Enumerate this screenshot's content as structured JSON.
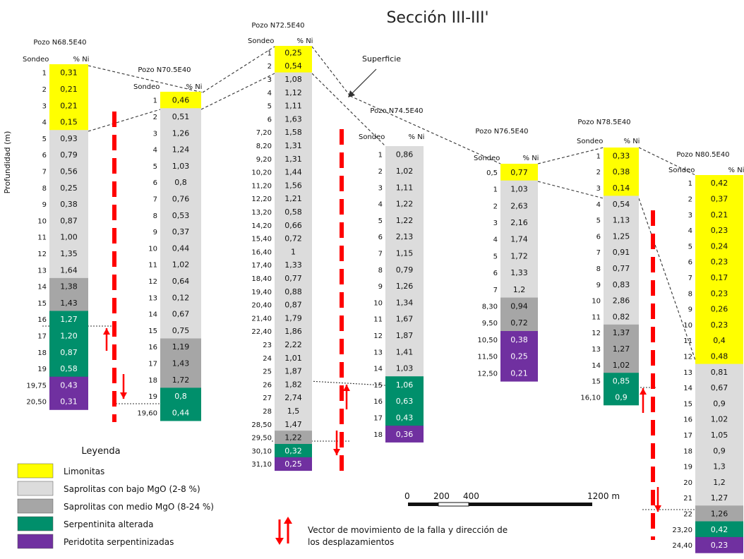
{
  "title": "Sección III-III'",
  "ylabel": "Profundidad (m)",
  "header_sondeo": "Sondeo",
  "header_ni": "% Ni",
  "surface_label": "Superficie",
  "legend_title": "Leyenda",
  "colors": {
    "L": "#ffff00",
    "S": "#dcdcdc",
    "M": "#a6a6a6",
    "G": "#008f6b",
    "P": "#7030a0",
    "arrow": "#ff0000"
  },
  "legend": [
    {
      "key": "L",
      "label": "Limonitas"
    },
    {
      "key": "S",
      "label": "Saprolitas con bajo MgO (2-8 %)"
    },
    {
      "key": "M",
      "label": "Saprolitas con medio MgO (8-24 %)"
    },
    {
      "key": "G",
      "label": "Serpentinita alterada"
    },
    {
      "key": "P",
      "label": "Peridotita serpentinizadas"
    }
  ],
  "arrow_legend": [
    "Vector de movimiento de la falla y dirección de",
    "los desplazamientos"
  ],
  "scale_labels": [
    "0",
    "200",
    "400",
    "1200 m"
  ],
  "wells": [
    {
      "name": "Pozo N68.5E40",
      "rows": [
        [
          "1",
          "0,31",
          "L"
        ],
        [
          "2",
          "0,21",
          "L"
        ],
        [
          "3",
          "0,21",
          "L"
        ],
        [
          "4",
          "0,15",
          "L"
        ],
        [
          "5",
          "0,93",
          "S"
        ],
        [
          "6",
          "0,79",
          "S"
        ],
        [
          "7",
          "0,56",
          "S"
        ],
        [
          "8",
          "0,25",
          "S"
        ],
        [
          "9",
          "0,38",
          "S"
        ],
        [
          "10",
          "0,87",
          "S"
        ],
        [
          "11",
          "1,00",
          "S"
        ],
        [
          "12",
          "1,35",
          "S"
        ],
        [
          "13",
          "1,64",
          "S"
        ],
        [
          "14",
          "1,38",
          "M"
        ],
        [
          "15",
          "1,43",
          "M"
        ],
        [
          "16",
          "1,27",
          "G"
        ],
        [
          "17",
          "1,20",
          "G"
        ],
        [
          "18",
          "0,87",
          "G"
        ],
        [
          "19",
          "0,58",
          "G"
        ],
        [
          "19,75",
          "0,43",
          "P"
        ],
        [
          "20,50",
          "0,31",
          "P"
        ]
      ]
    },
    {
      "name": "Pozo N70.5E40",
      "rows": [
        [
          "1",
          "0,46",
          "L"
        ],
        [
          "2",
          "0,51",
          "S"
        ],
        [
          "3",
          "1,26",
          "S"
        ],
        [
          "4",
          "1,24",
          "S"
        ],
        [
          "5",
          "1,03",
          "S"
        ],
        [
          "6",
          "0,8",
          "S"
        ],
        [
          "7",
          "0,76",
          "S"
        ],
        [
          "8",
          "0,53",
          "S"
        ],
        [
          "9",
          "0,37",
          "S"
        ],
        [
          "10",
          "0,44",
          "S"
        ],
        [
          "11",
          "1,02",
          "S"
        ],
        [
          "12",
          "0,64",
          "S"
        ],
        [
          "13",
          "0,12",
          "S"
        ],
        [
          "14",
          "0,67",
          "S"
        ],
        [
          "15",
          "0,75",
          "S"
        ],
        [
          "16",
          "1,19",
          "M"
        ],
        [
          "17",
          "1,43",
          "M"
        ],
        [
          "18",
          "1,72",
          "M"
        ],
        [
          "19",
          "0,8",
          "G"
        ],
        [
          "19,60",
          "0,44",
          "G"
        ]
      ]
    },
    {
      "name": "Pozo N72.5E40",
      "rows": [
        [
          "1",
          "0,25",
          "L"
        ],
        [
          "2",
          "0,54",
          "L"
        ],
        [
          "3",
          "1,08",
          "S"
        ],
        [
          "4",
          "1,12",
          "S"
        ],
        [
          "5",
          "1,11",
          "S"
        ],
        [
          "6",
          "1,63",
          "S"
        ],
        [
          "7,20",
          "1,58",
          "S"
        ],
        [
          "8,20",
          "1,31",
          "S"
        ],
        [
          "9,20",
          "1,31",
          "S"
        ],
        [
          "10,20",
          "1,44",
          "S"
        ],
        [
          "11,20",
          "1,56",
          "S"
        ],
        [
          "12,20",
          "1,21",
          "S"
        ],
        [
          "13,20",
          "0,58",
          "S"
        ],
        [
          "14,20",
          "0,66",
          "S"
        ],
        [
          "15,40",
          "0,72",
          "S"
        ],
        [
          "16,40",
          "1",
          "S"
        ],
        [
          "17,40",
          "1,33",
          "S"
        ],
        [
          "18,40",
          "0,77",
          "S"
        ],
        [
          "19,40",
          "0,88",
          "S"
        ],
        [
          "20,40",
          "0,87",
          "S"
        ],
        [
          "21,40",
          "1,79",
          "S"
        ],
        [
          "22,40",
          "1,86",
          "S"
        ],
        [
          "23",
          "2,22",
          "S"
        ],
        [
          "24",
          "1,01",
          "S"
        ],
        [
          "25",
          "1,87",
          "S"
        ],
        [
          "26",
          "1,82",
          "S"
        ],
        [
          "27",
          "2,74",
          "S"
        ],
        [
          "28",
          "1,5",
          "S"
        ],
        [
          "28,50",
          "1,47",
          "S"
        ],
        [
          "29,50",
          "1,22",
          "M"
        ],
        [
          "30,10",
          "0,32",
          "G"
        ],
        [
          "31,10",
          "0,25",
          "P"
        ]
      ]
    },
    {
      "name": "Pozo N74.5E40",
      "rows": [
        [
          "1",
          "0,86",
          "S"
        ],
        [
          "2",
          "1,02",
          "S"
        ],
        [
          "3",
          "1,11",
          "S"
        ],
        [
          "4",
          "1,22",
          "S"
        ],
        [
          "5",
          "1,22",
          "S"
        ],
        [
          "6",
          "2,13",
          "S"
        ],
        [
          "7",
          "1,15",
          "S"
        ],
        [
          "8",
          "0,79",
          "S"
        ],
        [
          "9",
          "1,26",
          "S"
        ],
        [
          "10",
          "1,34",
          "S"
        ],
        [
          "11",
          "1,67",
          "S"
        ],
        [
          "12",
          "1,87",
          "S"
        ],
        [
          "13",
          "1,41",
          "S"
        ],
        [
          "14",
          "1,03",
          "S"
        ],
        [
          "15",
          "1,06",
          "G"
        ],
        [
          "16",
          "0,63",
          "G"
        ],
        [
          "17",
          "0,43",
          "G"
        ],
        [
          "18",
          "0,36",
          "P"
        ]
      ]
    },
    {
      "name": "Pozo N76.5E40",
      "rows": [
        [
          "0,5",
          "0,77",
          "L"
        ],
        [
          "1",
          "1,03",
          "S"
        ],
        [
          "2",
          "2,63",
          "S"
        ],
        [
          "3",
          "2,16",
          "S"
        ],
        [
          "4",
          "1,74",
          "S"
        ],
        [
          "5",
          "1,72",
          "S"
        ],
        [
          "6",
          "1,33",
          "S"
        ],
        [
          "7",
          "1,2",
          "S"
        ],
        [
          "8,30",
          "0,94",
          "M"
        ],
        [
          "9,50",
          "0,72",
          "M"
        ],
        [
          "10,50",
          "0,38",
          "P"
        ],
        [
          "11,50",
          "0,25",
          "P"
        ],
        [
          "12,50",
          "0,21",
          "P"
        ]
      ]
    },
    {
      "name": "Pozo N78.5E40",
      "rows": [
        [
          "1",
          "0,33",
          "L"
        ],
        [
          "2",
          "0,38",
          "L"
        ],
        [
          "3",
          "0,14",
          "L"
        ],
        [
          "4",
          "0,54",
          "S"
        ],
        [
          "5",
          "1,13",
          "S"
        ],
        [
          "6",
          "1,25",
          "S"
        ],
        [
          "7",
          "0,91",
          "S"
        ],
        [
          "8",
          "0,77",
          "S"
        ],
        [
          "9",
          "0,83",
          "S"
        ],
        [
          "10",
          "2,86",
          "S"
        ],
        [
          "11",
          "0,82",
          "S"
        ],
        [
          "12",
          "1,37",
          "M"
        ],
        [
          "13",
          "1,27",
          "M"
        ],
        [
          "14",
          "1,02",
          "M"
        ],
        [
          "15",
          "0,85",
          "G"
        ],
        [
          "16,10",
          "0,9",
          "G"
        ]
      ]
    },
    {
      "name": "Pozo N80.5E40",
      "rows": [
        [
          "1",
          "0,42",
          "L"
        ],
        [
          "2",
          "0,37",
          "L"
        ],
        [
          "3",
          "0,21",
          "L"
        ],
        [
          "4",
          "0,23",
          "L"
        ],
        [
          "5",
          "0,24",
          "L"
        ],
        [
          "6",
          "0,23",
          "L"
        ],
        [
          "7",
          "0,17",
          "L"
        ],
        [
          "8",
          "0,23",
          "L"
        ],
        [
          "9",
          "0,26",
          "L"
        ],
        [
          "10",
          "0,23",
          "L"
        ],
        [
          "11",
          "0,4",
          "L"
        ],
        [
          "12",
          "0,48",
          "L"
        ],
        [
          "13",
          "0,81",
          "S"
        ],
        [
          "14",
          "0,67",
          "S"
        ],
        [
          "15",
          "0,9",
          "S"
        ],
        [
          "16",
          "1,02",
          "S"
        ],
        [
          "17",
          "1,05",
          "S"
        ],
        [
          "18",
          "0,9",
          "S"
        ],
        [
          "19",
          "1,3",
          "S"
        ],
        [
          "20",
          "1,2",
          "S"
        ],
        [
          "21",
          "1,27",
          "S"
        ],
        [
          "22",
          "1,26",
          "M"
        ],
        [
          "23,20",
          "0,42",
          "G"
        ],
        [
          "24,40",
          "0,23",
          "P"
        ]
      ]
    }
  ]
}
